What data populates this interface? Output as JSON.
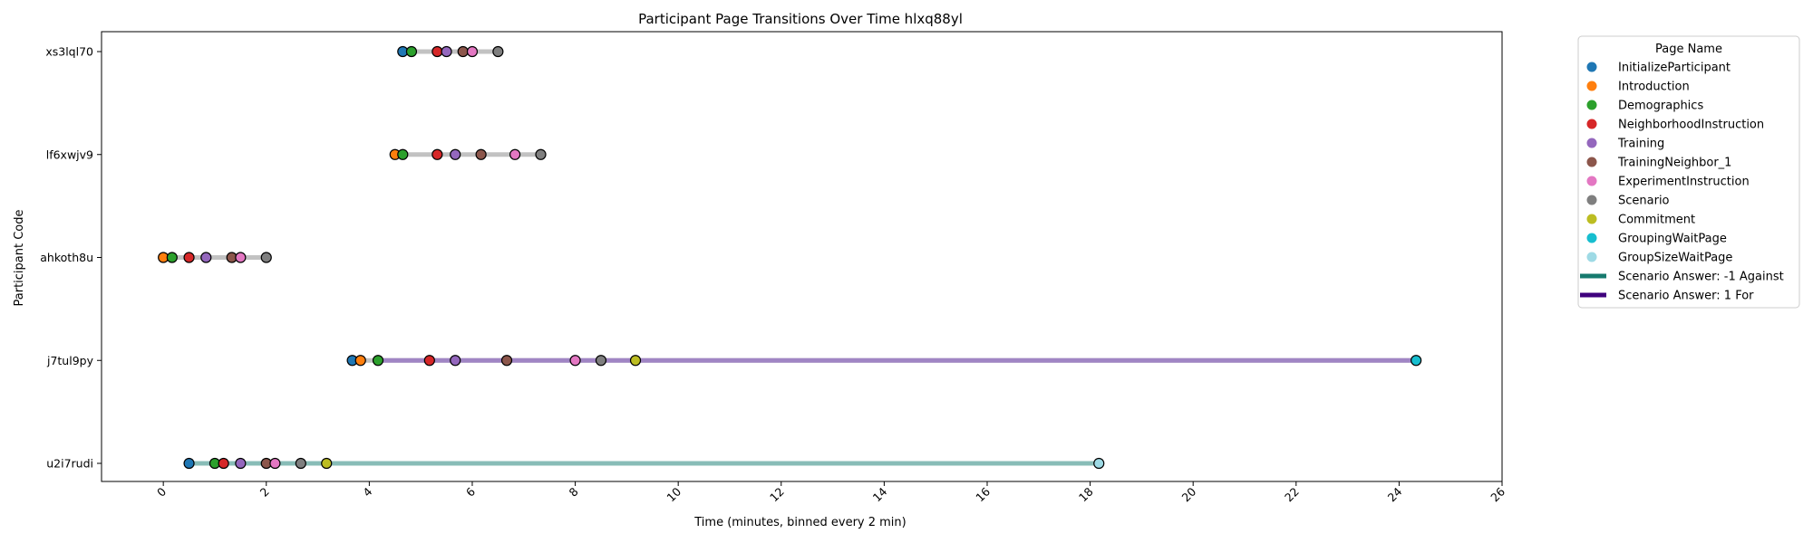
{
  "chart_data": {
    "type": "scatter",
    "title": "Participant Page Transitions Over Time hlxq88yl",
    "xlabel": "Time (minutes, binned every 2 min)",
    "ylabel": "Participant Code",
    "xlim": [
      -1.2,
      26
    ],
    "xticks": [
      0,
      2,
      4,
      6,
      8,
      10,
      12,
      14,
      16,
      18,
      20,
      22,
      24,
      26
    ],
    "grid": false,
    "legend_position": "outside-right",
    "legend_title": "Page Name",
    "categories": [
      "xs3lql70",
      "lf6xwjv9",
      "ahkoth8u",
      "j7tul9py",
      "u2i7rudi"
    ],
    "pages": [
      {
        "name": "InitializeParticipant",
        "color": "#1f77b4"
      },
      {
        "name": "Introduction",
        "color": "#ff7f0e"
      },
      {
        "name": "Demographics",
        "color": "#2ca02c"
      },
      {
        "name": "NeighborhoodInstruction",
        "color": "#d62728"
      },
      {
        "name": "Training",
        "color": "#9467bd"
      },
      {
        "name": "TrainingNeighbor_1",
        "color": "#8c564b"
      },
      {
        "name": "ExperimentInstruction",
        "color": "#e377c2"
      },
      {
        "name": "Scenario",
        "color": "#7f7f7f"
      },
      {
        "name": "Commitment",
        "color": "#bcbd22"
      },
      {
        "name": "GroupingWaitPage",
        "color": "#17becf"
      },
      {
        "name": "GroupSizeWaitPage",
        "color": "#9edae5"
      }
    ],
    "answers": [
      {
        "name": "Scenario Answer: -1 Against",
        "color": "#167a6e",
        "faded_color": "#88bcb7"
      },
      {
        "name": "Scenario Answer: 1 For",
        "color": "#3f007d",
        "faded_color": "#a085c4"
      }
    ],
    "participants": [
      {
        "code": "xs3lql70",
        "points": [
          {
            "page": "InitializeParticipant",
            "x": 4.65
          },
          {
            "page": "Demographics",
            "x": 4.82
          },
          {
            "page": "NeighborhoodInstruction",
            "x": 5.32
          },
          {
            "page": "Training",
            "x": 5.5
          },
          {
            "page": "TrainingNeighbor_1",
            "x": 5.82
          },
          {
            "page": "ExperimentInstruction",
            "x": 6.0
          },
          {
            "page": "Scenario",
            "x": 6.5
          }
        ],
        "answer_segment": null
      },
      {
        "code": "lf6xwjv9",
        "points": [
          {
            "page": "Introduction",
            "x": 4.5
          },
          {
            "page": "Demographics",
            "x": 4.65
          },
          {
            "page": "NeighborhoodInstruction",
            "x": 5.32
          },
          {
            "page": "Training",
            "x": 5.67
          },
          {
            "page": "TrainingNeighbor_1",
            "x": 6.17
          },
          {
            "page": "ExperimentInstruction",
            "x": 6.83
          },
          {
            "page": "Scenario",
            "x": 7.33
          }
        ],
        "answer_segment": null
      },
      {
        "code": "ahkoth8u",
        "points": [
          {
            "page": "Introduction",
            "x": 0.0
          },
          {
            "page": "Demographics",
            "x": 0.17
          },
          {
            "page": "NeighborhoodInstruction",
            "x": 0.5
          },
          {
            "page": "Training",
            "x": 0.83
          },
          {
            "page": "TrainingNeighbor_1",
            "x": 1.33
          },
          {
            "page": "ExperimentInstruction",
            "x": 1.5
          },
          {
            "page": "Scenario",
            "x": 2.0
          }
        ],
        "answer_segment": null
      },
      {
        "code": "j7tul9py",
        "points": [
          {
            "page": "InitializeParticipant",
            "x": 3.67
          },
          {
            "page": "Introduction",
            "x": 3.83
          },
          {
            "page": "Demographics",
            "x": 4.17
          },
          {
            "page": "NeighborhoodInstruction",
            "x": 5.17
          },
          {
            "page": "Training",
            "x": 5.67
          },
          {
            "page": "TrainingNeighbor_1",
            "x": 6.67
          },
          {
            "page": "ExperimentInstruction",
            "x": 8.0
          },
          {
            "page": "Scenario",
            "x": 8.5
          },
          {
            "page": "Commitment",
            "x": 9.17
          },
          {
            "page": "GroupingWaitPage",
            "x": 24.33
          }
        ],
        "answer_segment": {
          "answer": "Scenario Answer: 1 For",
          "x_start": 4.17,
          "x_end": 24.33
        }
      },
      {
        "code": "u2i7rudi",
        "points": [
          {
            "page": "InitializeParticipant",
            "x": 0.5
          },
          {
            "page": "Demographics",
            "x": 1.0
          },
          {
            "page": "NeighborhoodInstruction",
            "x": 1.17
          },
          {
            "page": "Training",
            "x": 1.5
          },
          {
            "page": "TrainingNeighbor_1",
            "x": 2.0
          },
          {
            "page": "ExperimentInstruction",
            "x": 2.17
          },
          {
            "page": "Scenario",
            "x": 2.67
          },
          {
            "page": "Commitment",
            "x": 3.17
          },
          {
            "page": "GroupSizeWaitPage",
            "x": 18.17
          }
        ],
        "answer_segment": {
          "answer": "Scenario Answer: -1 Against",
          "x_start": 0.5,
          "x_end": 18.17
        }
      }
    ]
  }
}
